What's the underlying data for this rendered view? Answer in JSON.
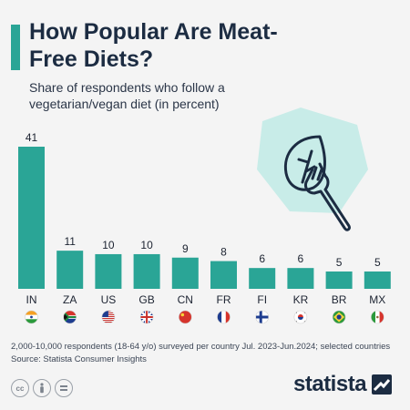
{
  "header": {
    "title": "How Popular Are Meat-Free Diets?",
    "subtitle": "Share of respondents who follow a vegetarian/vegan diet (in percent)"
  },
  "chart_data": {
    "type": "bar",
    "title": "How Popular Are Meat-Free Diets?",
    "subtitle": "Share of respondents who follow a vegetarian/vegan diet (in percent)",
    "categories": [
      "IN",
      "ZA",
      "US",
      "GB",
      "CN",
      "FR",
      "FI",
      "KR",
      "BR",
      "MX"
    ],
    "values": [
      41,
      11,
      10,
      10,
      9,
      8,
      6,
      6,
      5,
      5
    ],
    "flags": [
      "flag-india-icon",
      "flag-south-africa-icon",
      "flag-usa-icon",
      "flag-uk-icon",
      "flag-china-icon",
      "flag-france-icon",
      "flag-finland-icon",
      "flag-south-korea-icon",
      "flag-brazil-icon",
      "flag-mexico-icon"
    ],
    "ylim": [
      0,
      41
    ],
    "grid": false,
    "bar_color": "#2aa596"
  },
  "footer": {
    "note": "2,000-10,000 respondents (18-64 y/o) surveyed per country Jul. 2023-Jun.2024; selected countries",
    "source": "Source: Statista Consumer Insights",
    "brand": "statista",
    "license_icons": [
      "cc-icon",
      "attribution-icon",
      "equals-icon"
    ]
  },
  "colors": {
    "accent": "#2aa596",
    "title": "#1c2c42",
    "illustration_bg": "#c8ece8"
  },
  "illustration": {
    "icons": [
      "leaf-icon",
      "fork-icon"
    ]
  }
}
